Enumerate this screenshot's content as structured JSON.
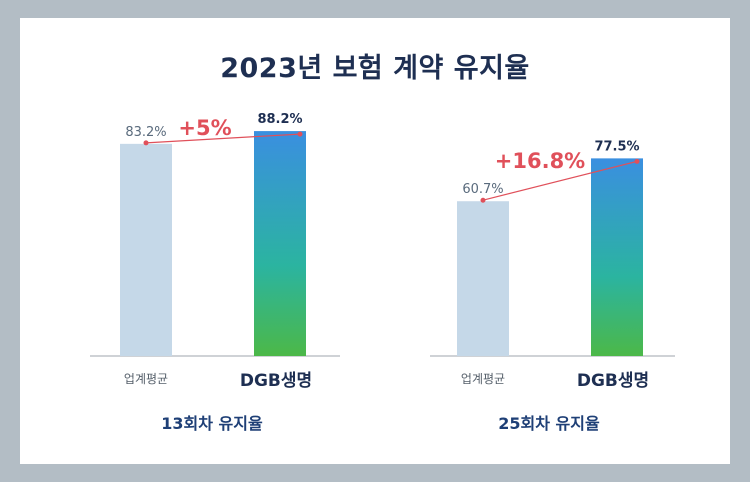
{
  "title": "2023년 보험 계약 유지율",
  "colors": {
    "avg_bar": "#c5d8e8",
    "dgb_top": "#3a8fe0",
    "dgb_mid": "#2bb4a0",
    "dgb_bottom": "#4cb848",
    "diff_line": "#e0505a",
    "avg_label": "#5a6b7d",
    "dgb_label": "#1e2f52"
  },
  "chart_data": [
    {
      "type": "bar",
      "subtitle": "13회차 유지율",
      "categories": [
        "업계평균",
        "DGB생명"
      ],
      "values": [
        83.2,
        88.2
      ],
      "value_labels": [
        "83.2%",
        "88.2%"
      ],
      "diff_label": "+5%",
      "ylim": [
        0,
        100
      ]
    },
    {
      "type": "bar",
      "subtitle": "25회차 유지율",
      "categories": [
        "업계평균",
        "DGB생명"
      ],
      "values": [
        60.7,
        77.5
      ],
      "value_labels": [
        "60.7%",
        "77.5%"
      ],
      "diff_label": "+16.8%",
      "ylim": [
        0,
        100
      ]
    }
  ]
}
